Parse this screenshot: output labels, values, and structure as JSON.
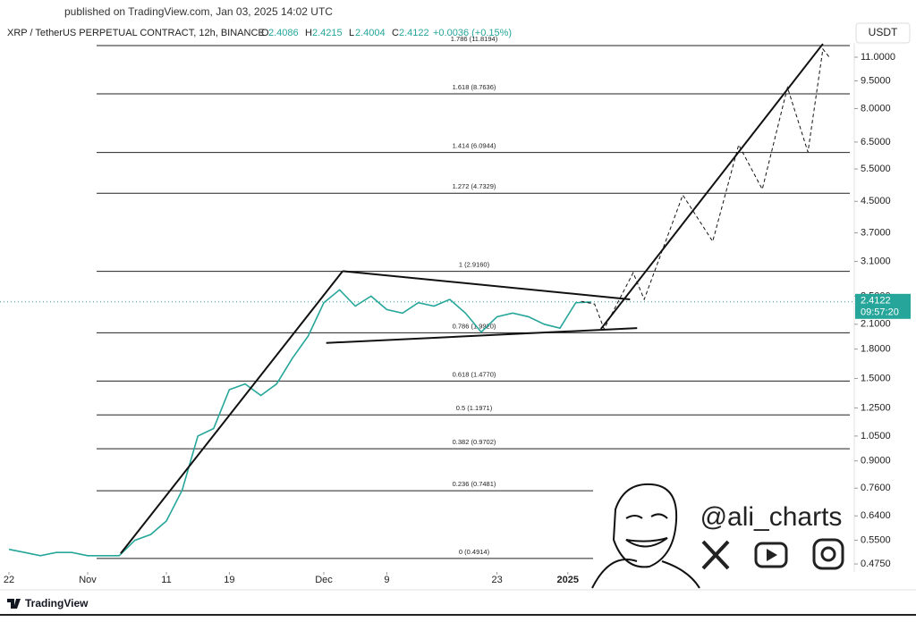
{
  "header": {
    "published": "published on TradingView.com, Jan 03, 2025 14:02 UTC",
    "symbol": "XRP / TetherUS PERPETUAL CONTRACT, 12h, BINANCE",
    "ohlc": {
      "open_label": "O",
      "open": 2.4086,
      "high_label": "H",
      "high": 2.4215,
      "low_label": "L",
      "low": 2.4004,
      "close_label": "C",
      "close": 2.4122,
      "change": "+0.0036 (+0.15%)"
    },
    "currency": "USDT"
  },
  "chart_data": {
    "type": "line",
    "log_scale": true,
    "xlim": [
      -1.136,
      107.386
    ],
    "ylim": [
      0.452,
      12.02
    ],
    "xticks": [
      {
        "value": 0,
        "label": "22"
      },
      {
        "value": 10,
        "label": "Nov"
      },
      {
        "value": 20,
        "label": "11"
      },
      {
        "value": 28,
        "label": "19"
      },
      {
        "value": 40,
        "label": "Dec"
      },
      {
        "value": 48,
        "label": "9"
      },
      {
        "value": 62,
        "label": "23"
      },
      {
        "value": 71,
        "label": "2025"
      }
    ],
    "yticks": [
      {
        "value": 11,
        "label": "11.0000"
      },
      {
        "value": 9.5,
        "label": "9.5000"
      },
      {
        "value": 8,
        "label": "8.0000"
      },
      {
        "value": 6.5,
        "label": "6.5000"
      },
      {
        "value": 5.5,
        "label": "5.5000"
      },
      {
        "value": 4.5,
        "label": "4.5000"
      },
      {
        "value": 3.7,
        "label": "3.7000"
      },
      {
        "value": 3.1,
        "label": "3.1000"
      },
      {
        "value": 2.5,
        "label": "2.5000"
      },
      {
        "value": 2.1,
        "label": "2.1000"
      },
      {
        "value": 1.8,
        "label": "1.8000"
      },
      {
        "value": 1.5,
        "label": "1.5000"
      },
      {
        "value": 1.25,
        "label": "1.2500"
      },
      {
        "value": 1.05,
        "label": "1.0500"
      },
      {
        "value": 0.9,
        "label": "0.9000"
      },
      {
        "value": 0.76,
        "label": "0.7600"
      },
      {
        "value": 0.64,
        "label": "0.6400"
      },
      {
        "value": 0.55,
        "label": "0.5500"
      },
      {
        "value": 0.475,
        "label": "0.4750"
      }
    ],
    "series": [
      {
        "color": "#26a69a",
        "x": [
          0,
          2,
          4,
          6,
          8,
          10,
          12,
          14,
          16,
          18,
          20,
          22,
          24,
          26,
          28,
          30,
          32,
          34,
          36,
          38,
          40,
          42,
          44,
          46,
          48,
          50,
          52,
          54,
          56,
          58,
          60,
          62,
          64,
          66,
          68,
          70,
          72,
          74
        ],
        "values": [
          0.52,
          0.51,
          0.5,
          0.51,
          0.51,
          0.5,
          0.5,
          0.5,
          0.55,
          0.57,
          0.62,
          0.75,
          1.05,
          1.1,
          1.4,
          1.45,
          1.35,
          1.45,
          1.7,
          1.95,
          2.4,
          2.6,
          2.35,
          2.5,
          2.3,
          2.25,
          2.4,
          2.35,
          2.45,
          2.25,
          2.0,
          2.2,
          2.25,
          2.2,
          2.1,
          2.05,
          2.4,
          2.41
        ]
      }
    ],
    "last_price": 2.4122,
    "countdown": "09:57:20",
    "last_color": "#26a69a",
    "fib_levels": [
      {
        "price": 11.8194,
        "label": "1.786 (11.8194)"
      },
      {
        "price": 8.7636,
        "label": "1.618 (8.7636)"
      },
      {
        "price": 6.0944,
        "label": "1.414 (6.0944)"
      },
      {
        "price": 4.7329,
        "label": "1.272 (4.7329)"
      },
      {
        "price": 2.916,
        "label": "1 (2.9160)"
      },
      {
        "price": 1.992,
        "label": "0.786 (1.9920)"
      },
      {
        "price": 1.477,
        "label": "0.618 (1.4770)"
      },
      {
        "price": 1.1971,
        "label": "0.5 (1.1971)"
      },
      {
        "price": 0.9702,
        "label": "0.382 (0.9702)"
      },
      {
        "price": 0.7481,
        "label": "0.236 (0.7481)"
      },
      {
        "price": 0.4914,
        "label": "0 (0.4914)"
      }
    ],
    "lines": [
      {
        "style": "solid",
        "x": [
          14.2,
          42.4
        ],
        "values": [
          0.507,
          2.92
        ]
      },
      {
        "style": "solid",
        "x": [
          42.4,
          78.9
        ],
        "values": [
          2.92,
          2.45
        ]
      },
      {
        "style": "solid",
        "x": [
          40.3,
          79.8
        ],
        "values": [
          1.87,
          2.05
        ]
      },
      {
        "style": "solid",
        "x": [
          75.2,
          103.4
        ],
        "values": [
          2.04,
          11.95
        ]
      },
      {
        "style": "dashed",
        "x": [
          72.7,
          74.4,
          75.6,
          79.3,
          80.7,
          85.6,
          89.4,
          92.7,
          95.7,
          98.9,
          101.5,
          103.4,
          104.3
        ],
        "values": [
          2.42,
          2.38,
          2.04,
          2.89,
          2.45,
          4.68,
          3.51,
          6.39,
          4.85,
          9.12,
          6.11,
          11.57,
          10.94
        ]
      }
    ]
  },
  "watermark": {
    "handle": "@ali_charts"
  },
  "footer": {
    "brand": "TradingView"
  }
}
